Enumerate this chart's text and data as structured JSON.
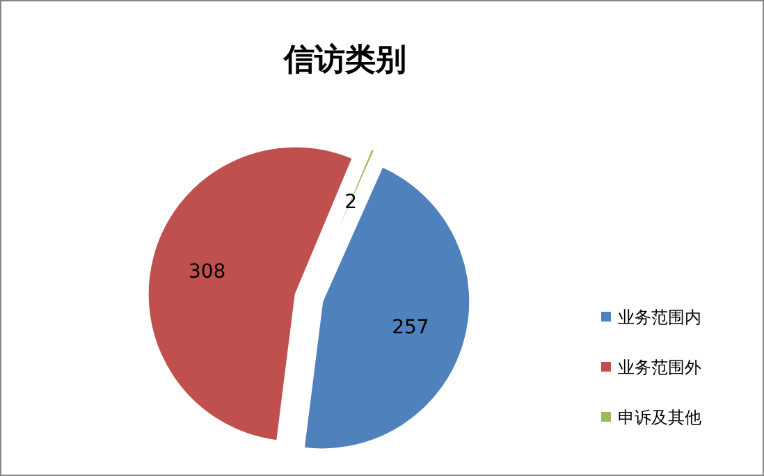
{
  "chart_data": {
    "type": "pie",
    "title": "信访类别",
    "categories": [
      "业务范围内",
      "业务范围外",
      "申诉及其他"
    ],
    "values": [
      257,
      308,
      2
    ],
    "colors": [
      "#4f81bd",
      "#c0504d",
      "#9bbb59"
    ],
    "data_labels": true,
    "legend": "right"
  }
}
